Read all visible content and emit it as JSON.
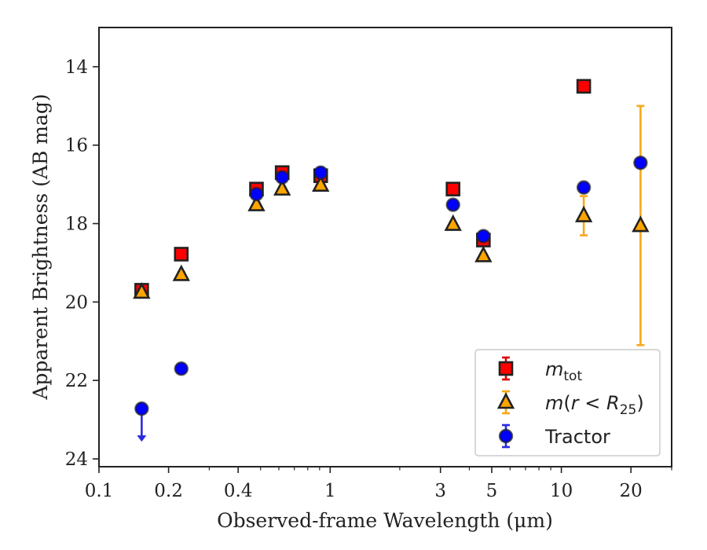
{
  "chart_data": {
    "type": "scatter",
    "xlabel": "Observed-frame Wavelength (μm)",
    "ylabel": "Apparent Brightness (AB mag)",
    "x_scale": "log",
    "xlim": [
      0.1,
      30
    ],
    "ylim": [
      24.2,
      13
    ],
    "y_inverted": true,
    "x_tick_labels": [
      "0.1",
      "0.2",
      "0.4",
      "1",
      "3",
      "5",
      "10",
      "20"
    ],
    "x_ticks": [
      0.1,
      0.2,
      0.4,
      1,
      3,
      5,
      10,
      20
    ],
    "y_ticks": [
      14,
      16,
      18,
      20,
      22,
      24
    ],
    "legend_position": "lower-right",
    "series": [
      {
        "name": "m_tot",
        "marker": "square",
        "color": "#ff0000",
        "points": [
          {
            "x": 0.153,
            "y": 19.7,
            "err": 0.1
          },
          {
            "x": 0.227,
            "y": 18.78,
            "err": 0.05
          },
          {
            "x": 0.48,
            "y": 17.12,
            "err": 0.05
          },
          {
            "x": 0.62,
            "y": 16.7,
            "err": 0.06
          },
          {
            "x": 0.91,
            "y": 16.78,
            "err": 0.05
          },
          {
            "x": 3.4,
            "y": 17.12,
            "err": 0.05
          },
          {
            "x": 4.6,
            "y": 18.42,
            "err": 0.06
          },
          {
            "x": 12.5,
            "y": 14.5,
            "err": 0.05
          }
        ]
      },
      {
        "name": "m(r<R25)",
        "marker": "triangle",
        "color": "#ffa500",
        "points": [
          {
            "x": 0.153,
            "y": 19.75,
            "err": 0.1
          },
          {
            "x": 0.227,
            "y": 19.3,
            "err": 0.06
          },
          {
            "x": 0.48,
            "y": 17.52,
            "err": 0.05
          },
          {
            "x": 0.62,
            "y": 17.12,
            "err": 0.05
          },
          {
            "x": 0.91,
            "y": 17.02,
            "err": 0.05
          },
          {
            "x": 3.4,
            "y": 18.02,
            "err": 0.05
          },
          {
            "x": 4.6,
            "y": 18.82,
            "err": 0.06
          },
          {
            "x": 12.5,
            "y": 17.8,
            "err": 0.5
          },
          {
            "x": 22.0,
            "y": 18.05,
            "err": 3.05
          }
        ]
      },
      {
        "name": "Tractor",
        "marker": "circle",
        "color": "#0000ff",
        "points": [
          {
            "x": 0.153,
            "y": 22.72,
            "err": 0.05,
            "upper_limit": true
          },
          {
            "x": 0.227,
            "y": 21.7,
            "err": 0.05
          },
          {
            "x": 0.48,
            "y": 17.25,
            "err": 0.05
          },
          {
            "x": 0.62,
            "y": 16.82,
            "err": 0.05
          },
          {
            "x": 0.91,
            "y": 16.7,
            "err": 0.05
          },
          {
            "x": 3.4,
            "y": 17.52,
            "err": 0.05
          },
          {
            "x": 4.6,
            "y": 18.32,
            "err": 0.05
          },
          {
            "x": 12.5,
            "y": 17.08,
            "err": 0.05
          },
          {
            "x": 22.0,
            "y": 16.45,
            "err": 0.05
          }
        ]
      }
    ]
  }
}
